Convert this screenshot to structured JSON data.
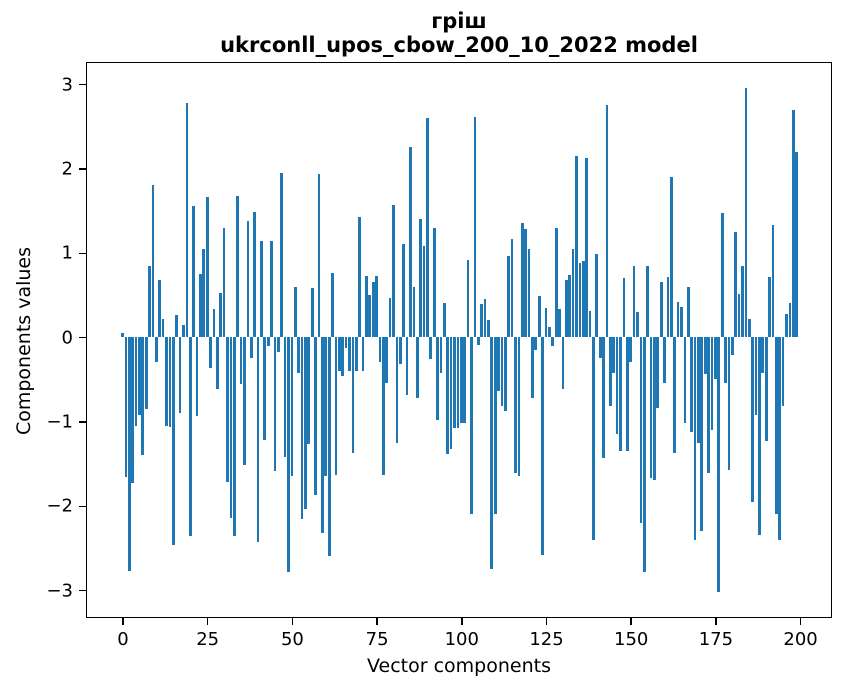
{
  "figure": {
    "background": "#ffffff"
  },
  "chart_data": {
    "type": "bar",
    "title_line1": "гріш",
    "title_line2": "ukrconll_upos_cbow_200_10_2022 model",
    "xlabel": "Vector components",
    "ylabel": "Components values",
    "bar_color": "#1f77b4",
    "spine_color": "#000000",
    "x_start": 0,
    "n_components": 200,
    "xticks": [
      0,
      25,
      50,
      75,
      100,
      125,
      150,
      175,
      200
    ],
    "yticks": [
      3,
      2,
      1,
      0,
      -1,
      -2,
      -3
    ],
    "ylim": [
      -3.32,
      3.27
    ],
    "xlim": [
      -10.9,
      209.9
    ],
    "grid": false,
    "legend": "none",
    "values": [
      0.05,
      -1.66,
      -2.77,
      -1.73,
      -1.05,
      -0.92,
      -1.4,
      -0.85,
      0.85,
      1.8,
      -0.3,
      0.68,
      0.21,
      -1.05,
      -1.06,
      -2.46,
      0.26,
      -0.9,
      0.15,
      2.78,
      -2.36,
      1.55,
      -0.93,
      0.75,
      1.05,
      1.66,
      -0.36,
      0.33,
      -0.62,
      0.52,
      1.3,
      -1.72,
      -2.14,
      -2.36,
      1.68,
      -0.55,
      -1.51,
      1.38,
      -0.25,
      1.49,
      -2.43,
      1.14,
      -1.22,
      -0.1,
      1.14,
      -1.59,
      -0.18,
      1.95,
      -1.42,
      -2.78,
      -1.65,
      0.59,
      -0.42,
      -2.16,
      -2.04,
      -1.27,
      0.58,
      -1.87,
      1.93,
      -2.32,
      -1.65,
      -2.6,
      0.76,
      -1.63,
      -0.4,
      -0.46,
      -0.13,
      -0.4,
      -1.37,
      -0.4,
      1.42,
      -0.4,
      0.72,
      0.5,
      0.66,
      0.72,
      -0.3,
      -1.63,
      -0.54,
      0.47,
      1.57,
      -1.25,
      -0.32,
      1.1,
      -0.68,
      2.25,
      0.6,
      -0.72,
      1.4,
      1.08,
      2.6,
      -0.26,
      1.3,
      -0.98,
      -0.42,
      0.41,
      -1.39,
      -1.33,
      -1.08,
      -1.08,
      -1.02,
      -1.02,
      0.92,
      -2.1,
      2.61,
      -0.09,
      0.39,
      0.45,
      0.2,
      -2.75,
      -2.1,
      -0.64,
      -0.82,
      -0.88,
      0.96,
      1.16,
      -1.61,
      -1.65,
      1.35,
      1.28,
      1.05,
      -0.72,
      -0.15,
      0.49,
      -2.58,
      0.35,
      0.12,
      -0.1,
      1.3,
      0.33,
      -0.62,
      0.68,
      0.74,
      1.04,
      2.15,
      0.88,
      0.9,
      2.13,
      0.31,
      -2.4,
      0.99,
      -0.25,
      -1.43,
      2.75,
      -0.82,
      -0.42,
      -1.15,
      -1.35,
      0.7,
      -1.35,
      -0.3,
      0.84,
      0.3,
      -2.2,
      -2.79,
      0.85,
      -1.67,
      -1.69,
      -0.84,
      0.65,
      -0.54,
      0.71,
      1.9,
      -1.37,
      0.42,
      0.36,
      -1.02,
      0.59,
      -1.13,
      -2.4,
      -1.25,
      -2.3,
      -0.44,
      -1.61,
      -1.1,
      -0.5,
      -3.02,
      1.47,
      -0.54,
      -1.57,
      -0.21,
      1.25,
      0.51,
      0.84,
      2.95,
      0.21,
      -1.95,
      -0.92,
      -2.35,
      -0.42,
      -1.23,
      0.71,
      1.33,
      -2.1,
      -2.4,
      -0.82,
      0.27,
      0.4,
      2.69,
      2.2
    ]
  }
}
